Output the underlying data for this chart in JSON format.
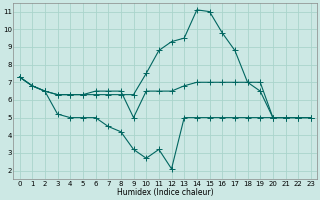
{
  "background_color": "#cce8e4",
  "grid_color": "#aad4cc",
  "line_color": "#006660",
  "xlabel": "Humidex (Indice chaleur)",
  "xlim": [
    -0.5,
    23.5
  ],
  "ylim": [
    1.5,
    11.5
  ],
  "yticks": [
    2,
    3,
    4,
    5,
    6,
    7,
    8,
    9,
    10,
    11
  ],
  "xticks": [
    0,
    1,
    2,
    3,
    4,
    5,
    6,
    7,
    8,
    9,
    10,
    11,
    12,
    13,
    14,
    15,
    16,
    17,
    18,
    19,
    20,
    21,
    22,
    23
  ],
  "series1_x": [
    0,
    1,
    2,
    3,
    4,
    5,
    6,
    7,
    8,
    9,
    10,
    11,
    12,
    13,
    14,
    15,
    16,
    17,
    18,
    19,
    20,
    21,
    22,
    23
  ],
  "series1_y": [
    7.3,
    6.8,
    6.5,
    6.3,
    6.3,
    6.3,
    6.5,
    6.5,
    6.5,
    5.0,
    6.5,
    6.5,
    6.5,
    6.8,
    7.0,
    7.0,
    7.0,
    7.0,
    7.0,
    7.0,
    5.0,
    5.0,
    5.0,
    5.0
  ],
  "series2_x": [
    0,
    1,
    2,
    3,
    4,
    5,
    6,
    7,
    8,
    9,
    10,
    11,
    12,
    13,
    14,
    15,
    16,
    17,
    18,
    19,
    20,
    21,
    22,
    23
  ],
  "series2_y": [
    7.3,
    6.8,
    6.5,
    6.3,
    6.3,
    6.3,
    6.3,
    6.3,
    6.3,
    6.3,
    7.5,
    8.8,
    9.3,
    9.5,
    11.1,
    11.0,
    9.8,
    8.8,
    7.0,
    6.5,
    5.0,
    5.0,
    5.0,
    5.0
  ],
  "series3_x": [
    0,
    1,
    2,
    3,
    4,
    5,
    6,
    7,
    8,
    9,
    10,
    11,
    12,
    13,
    14,
    15,
    16,
    17,
    18,
    19,
    20,
    21,
    22,
    23
  ],
  "series3_y": [
    7.3,
    6.8,
    6.5,
    5.2,
    5.0,
    5.0,
    5.0,
    4.5,
    4.2,
    3.2,
    2.7,
    3.2,
    2.1,
    5.0,
    5.0,
    5.0,
    5.0,
    5.0,
    5.0,
    5.0,
    5.0,
    5.0,
    5.0,
    5.0
  ]
}
